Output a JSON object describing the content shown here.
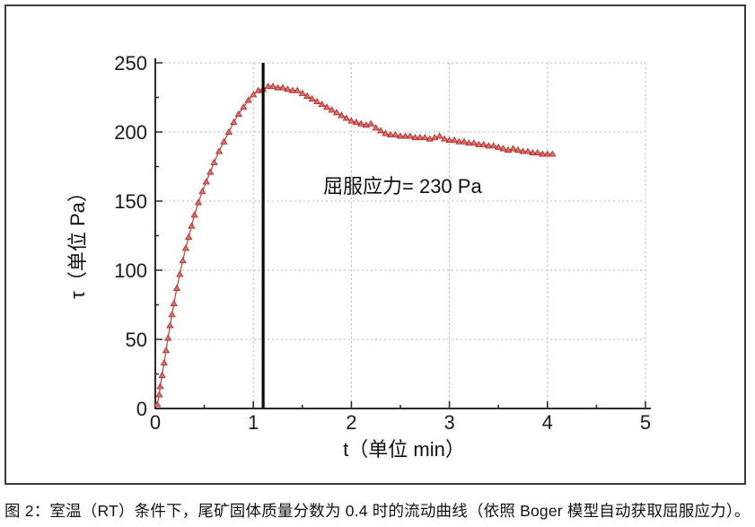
{
  "figure": {
    "caption": "图 2：室温（RT）条件下，尾矿固体质量分数为 0.4 时的流动曲线（依照 Boger 模型自动获取屈服应力）。"
  },
  "colors": {
    "curve_line": "#c84a44",
    "marker_fill": "#dd7068",
    "marker_edge": "#b23232",
    "grid": "#b5b5b5",
    "axis": "#2b2b2b",
    "yield_line": "#0a0a0a",
    "text": "#111111",
    "background": "#ffffff"
  },
  "chart_data": {
    "type": "line",
    "title": "",
    "xlabel": "t（单位 min）",
    "ylabel": "τ（单位 Pa）",
    "xlim": [
      0,
      5
    ],
    "ylim": [
      0,
      250
    ],
    "x_ticks": [
      0,
      1,
      2,
      3,
      4,
      5
    ],
    "y_ticks": [
      0,
      50,
      100,
      150,
      200,
      250
    ],
    "x_minor_ticks": [
      0.5,
      1.5,
      2.5,
      3.5,
      4.5
    ],
    "y_minor_ticks": [
      25,
      75,
      125,
      175,
      225
    ],
    "grid": "dashed",
    "legend_position": "none",
    "annotation": {
      "text": "屈服应力= 230 Pa",
      "t": 1.73,
      "tau": 164
    },
    "yield_line": {
      "t": 1.1,
      "value_pa": 230
    },
    "series": [
      {
        "name": "flow-curve (RT, solids mass fraction 0.4)",
        "marker": "triangle",
        "points": [
          [
            0.02,
            3
          ],
          [
            0.04,
            10
          ],
          [
            0.05,
            16
          ],
          [
            0.07,
            24
          ],
          [
            0.09,
            33
          ],
          [
            0.11,
            42
          ],
          [
            0.13,
            51
          ],
          [
            0.15,
            60
          ],
          [
            0.17,
            68
          ],
          [
            0.19,
            76
          ],
          [
            0.22,
            87
          ],
          [
            0.25,
            97
          ],
          [
            0.28,
            107
          ],
          [
            0.31,
            116
          ],
          [
            0.34,
            124
          ],
          [
            0.37,
            132
          ],
          [
            0.4,
            140
          ],
          [
            0.44,
            149
          ],
          [
            0.48,
            157
          ],
          [
            0.52,
            164
          ],
          [
            0.56,
            171
          ],
          [
            0.6,
            178
          ],
          [
            0.65,
            186
          ],
          [
            0.7,
            193
          ],
          [
            0.75,
            200
          ],
          [
            0.8,
            207
          ],
          [
            0.85,
            213
          ],
          [
            0.9,
            218
          ],
          [
            0.95,
            223
          ],
          [
            1.0,
            227
          ],
          [
            1.05,
            230
          ],
          [
            1.1,
            231
          ],
          [
            1.15,
            233
          ],
          [
            1.2,
            233
          ],
          [
            1.25,
            232
          ],
          [
            1.3,
            232
          ],
          [
            1.35,
            231
          ],
          [
            1.4,
            230
          ],
          [
            1.45,
            230
          ],
          [
            1.5,
            228
          ],
          [
            1.55,
            226
          ],
          [
            1.6,
            224
          ],
          [
            1.65,
            222
          ],
          [
            1.7,
            220
          ],
          [
            1.75,
            218
          ],
          [
            1.8,
            216
          ],
          [
            1.85,
            214
          ],
          [
            1.9,
            212
          ],
          [
            1.95,
            210
          ],
          [
            2.0,
            208
          ],
          [
            2.05,
            207
          ],
          [
            2.1,
            206
          ],
          [
            2.15,
            205
          ],
          [
            2.2,
            206
          ],
          [
            2.25,
            203
          ],
          [
            2.3,
            201
          ],
          [
            2.35,
            199
          ],
          [
            2.4,
            198
          ],
          [
            2.45,
            198
          ],
          [
            2.5,
            197
          ],
          [
            2.55,
            197
          ],
          [
            2.6,
            197
          ],
          [
            2.65,
            196
          ],
          [
            2.7,
            196
          ],
          [
            2.75,
            196
          ],
          [
            2.8,
            195
          ],
          [
            2.85,
            196
          ],
          [
            2.9,
            197
          ],
          [
            2.95,
            195
          ],
          [
            3.0,
            194
          ],
          [
            3.05,
            194
          ],
          [
            3.1,
            193
          ],
          [
            3.15,
            193
          ],
          [
            3.2,
            192
          ],
          [
            3.25,
            192
          ],
          [
            3.3,
            191
          ],
          [
            3.35,
            191
          ],
          [
            3.4,
            190
          ],
          [
            3.45,
            190
          ],
          [
            3.5,
            189
          ],
          [
            3.55,
            188
          ],
          [
            3.6,
            187
          ],
          [
            3.65,
            188
          ],
          [
            3.7,
            187
          ],
          [
            3.75,
            186
          ],
          [
            3.8,
            186
          ],
          [
            3.85,
            185
          ],
          [
            3.9,
            185
          ],
          [
            3.95,
            184
          ],
          [
            4.0,
            184
          ],
          [
            4.05,
            184
          ]
        ]
      }
    ]
  }
}
